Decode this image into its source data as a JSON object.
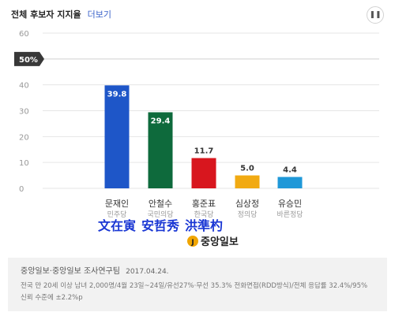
{
  "header": {
    "title": "전체 후보자 지지율",
    "more_link": "더보기",
    "pause_icon": "pause-icon"
  },
  "overlay": {
    "hanja_labels": [
      "文在寅",
      "安哲秀",
      "洪準杓"
    ],
    "hanja_color": "#1a37d4",
    "logo_text": "중앙일보"
  },
  "footer": {
    "source": "중앙일보·중앙일보 조사연구팀",
    "date": "2017.04.24.",
    "note": "전국 만 20세 이상 남녀 2,000명/4월 23일~24일/유선27%·무선 35.3% 전화면접(RDD방식)/전체 응답률 32.4%/95% 신뢰 수준에 ±2.2%p"
  },
  "chart_data": {
    "type": "bar",
    "title": "전체 후보자 지지율",
    "ylim": [
      0,
      60
    ],
    "yticks": [
      0,
      10,
      20,
      30,
      40,
      60
    ],
    "reference_line": {
      "value": 50,
      "label": "50%"
    },
    "grid": true,
    "categories": [
      "문재인",
      "안철수",
      "홍준표",
      "심상정",
      "유승민"
    ],
    "parties": [
      "민주당",
      "국민의당",
      "한국당",
      "정의당",
      "바른정당"
    ],
    "values": [
      39.8,
      29.4,
      11.7,
      5.0,
      4.4
    ],
    "value_labels": [
      "39.8",
      "29.4",
      "11.7",
      "5.0",
      "4.4"
    ],
    "colors": [
      "#1e56c8",
      "#0e6a3c",
      "#d8161e",
      "#f1aa12",
      "#1f98d8"
    ]
  }
}
